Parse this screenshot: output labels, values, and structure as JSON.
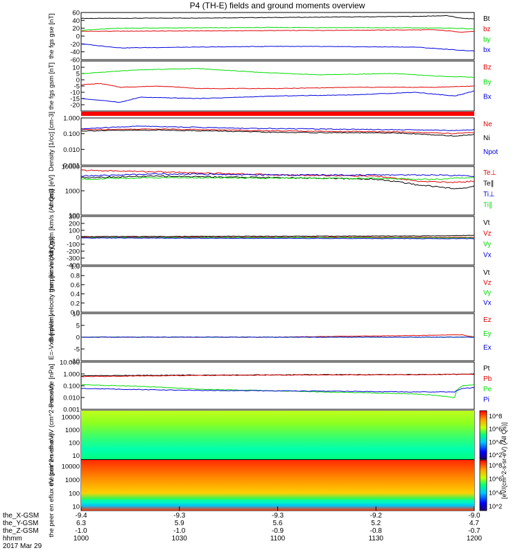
{
  "title": "P4 (TH-E) fields and ground moments overview",
  "footer": {
    "row_labels": [
      "the_X-GSM",
      "the_Y-GSM",
      "the_Z-GSM",
      "hhmm",
      "2017 Mar 29"
    ],
    "columns": [
      {
        "x": "-9.4",
        "y": "6.3",
        "z": "-1.0",
        "t": "1000"
      },
      {
        "x": "-9.3",
        "y": "5.9",
        "z": "-1.0",
        "t": "1030"
      },
      {
        "x": "-9.3",
        "y": "5.6",
        "z": "-0.9",
        "t": "1100"
      },
      {
        "x": "-9.2",
        "y": "5.2",
        "z": "-0.8",
        "t": "1130"
      },
      {
        "x": "-9.0",
        "y": "4.7",
        "z": "-0.7",
        "t": "1200"
      }
    ]
  },
  "colors": {
    "black": "#000000",
    "red": "#e00000",
    "green": "#00dd00",
    "blue": "#0000dd"
  },
  "chart_data": [
    {
      "type": "line",
      "ylabel": "the fgs gse [nT]",
      "ylim": [
        -60,
        60
      ],
      "yticks": [
        "60",
        "40",
        "20",
        "0",
        "-20",
        "-40",
        "-60"
      ],
      "series": [
        {
          "name": "Bt",
          "color": "#000000",
          "points": [
            [
              0,
              45
            ],
            [
              0.3,
              46
            ],
            [
              0.6,
              48
            ],
            [
              0.85,
              50
            ],
            [
              0.93,
              52
            ],
            [
              0.97,
              45
            ],
            [
              1,
              44
            ]
          ]
        },
        {
          "name": "bz",
          "color": "#e00000",
          "points": [
            [
              0,
              12
            ],
            [
              0.5,
              14
            ],
            [
              0.9,
              16
            ],
            [
              0.97,
              10
            ],
            [
              1,
              12
            ]
          ]
        },
        {
          "name": "by",
          "color": "#00dd00",
          "points": [
            [
              0,
              15
            ],
            [
              0.1,
              20
            ],
            [
              0.5,
              22
            ],
            [
              0.85,
              21
            ],
            [
              0.95,
              20
            ],
            [
              1,
              18
            ]
          ]
        },
        {
          "name": "bx",
          "color": "#0000dd",
          "points": [
            [
              0,
              -20
            ],
            [
              0.1,
              -30
            ],
            [
              0.5,
              -26
            ],
            [
              0.85,
              -28
            ],
            [
              0.95,
              -35
            ],
            [
              1,
              -38
            ]
          ]
        }
      ]
    },
    {
      "type": "line",
      "ylabel": "the fgs gsm [nT]",
      "ylim": [
        -25,
        15
      ],
      "yticks": [
        "10",
        "5",
        "0",
        "-5",
        "-10",
        "-15",
        "-20"
      ],
      "series": [
        {
          "name": "Bz",
          "color": "#e00000",
          "points": [
            [
              0,
              -4
            ],
            [
              0.05,
              -3
            ],
            [
              0.1,
              -6
            ],
            [
              0.2,
              -5
            ],
            [
              0.3,
              -7
            ],
            [
              0.5,
              -7
            ],
            [
              0.7,
              -6
            ],
            [
              0.9,
              -6
            ],
            [
              1,
              -5
            ]
          ]
        },
        {
          "name": "By",
          "color": "#00dd00",
          "points": [
            [
              0,
              5
            ],
            [
              0.15,
              8
            ],
            [
              0.3,
              9
            ],
            [
              0.45,
              6
            ],
            [
              0.6,
              4
            ],
            [
              0.8,
              5
            ],
            [
              0.9,
              3
            ],
            [
              1,
              2
            ]
          ]
        },
        {
          "name": "Bx",
          "color": "#0000dd",
          "points": [
            [
              0,
              -15
            ],
            [
              0.1,
              -18
            ],
            [
              0.15,
              -14
            ],
            [
              0.3,
              -15
            ],
            [
              0.5,
              -13
            ],
            [
              0.7,
              -12
            ],
            [
              0.85,
              -10
            ],
            [
              0.95,
              -13
            ],
            [
              1,
              -9
            ]
          ]
        }
      ]
    },
    {
      "type": "line",
      "ylabel": "Density [1/cc] [cm-3]",
      "scale": "log",
      "ylim": [
        0.001,
        1.0
      ],
      "yticks": [
        "1.000",
        "0.100",
        "0.010",
        "0.001"
      ],
      "series": [
        {
          "name": "Ne",
          "color": "#e00000",
          "points": [
            [
              0,
              0.18
            ],
            [
              0.2,
              0.2
            ],
            [
              0.5,
              0.15
            ],
            [
              0.8,
              0.13
            ],
            [
              0.95,
              0.1
            ],
            [
              1,
              0.12
            ]
          ]
        },
        {
          "name": "Ni",
          "color": "#000000",
          "points": [
            [
              0,
              0.15
            ],
            [
              0.2,
              0.17
            ],
            [
              0.5,
              0.12
            ],
            [
              0.8,
              0.11
            ],
            [
              0.95,
              0.07
            ],
            [
              1,
              0.09
            ]
          ]
        },
        {
          "name": "Npot",
          "color": "#0000dd",
          "points": [
            [
              0,
              0.2
            ],
            [
              0.15,
              0.3
            ],
            [
              0.4,
              0.22
            ],
            [
              0.8,
              0.18
            ],
            [
              0.95,
              0.16
            ],
            [
              1,
              0.18
            ]
          ]
        }
      ]
    },
    {
      "type": "line",
      "ylabel": "mom3 [eV]",
      "scale": "log",
      "ylim": [
        100,
        10000
      ],
      "yticks": [
        "10000",
        "1000",
        "100"
      ],
      "series": [
        {
          "name": "Te⊥",
          "color": "#e00000",
          "points": [
            [
              0,
              7000
            ],
            [
              0.2,
              6000
            ],
            [
              0.5,
              4500
            ],
            [
              0.75,
              4000
            ],
            [
              0.85,
              2500
            ],
            [
              0.95,
              2200
            ],
            [
              1,
              2500
            ]
          ]
        },
        {
          "name": "Te∥",
          "color": "#000000",
          "points": [
            [
              0,
              3500
            ],
            [
              0.2,
              4000
            ],
            [
              0.5,
              3500
            ],
            [
              0.75,
              3000
            ],
            [
              0.85,
              1800
            ],
            [
              0.95,
              1200
            ],
            [
              1,
              1500
            ]
          ]
        },
        {
          "name": "Ti⊥",
          "color": "#0000dd",
          "points": [
            [
              0,
              4000
            ],
            [
              0.2,
              5000
            ],
            [
              0.5,
              4500
            ],
            [
              0.75,
              4500
            ],
            [
              0.9,
              4500
            ],
            [
              1,
              4000
            ]
          ]
        },
        {
          "name": "Ti∥",
          "color": "#00dd00",
          "points": [
            [
              0,
              3000
            ],
            [
              0.2,
              3500
            ],
            [
              0.5,
              3300
            ],
            [
              0.75,
              3200
            ],
            [
              0.9,
              3000
            ],
            [
              1,
              3500
            ]
          ]
        }
      ]
    },
    {
      "type": "line",
      "ylabel": "the peir velocity gsm [km/s (All Qs)]",
      "ylim": [
        -400,
        300
      ],
      "yticks": [
        "300",
        "200",
        "100",
        "0",
        "-100",
        "-200",
        "-300",
        "-400"
      ],
      "series": [
        {
          "name": "Vt",
          "color": "#000000",
          "points": [
            [
              0,
              10
            ],
            [
              0.5,
              15
            ],
            [
              0.9,
              20
            ],
            [
              1,
              30
            ]
          ]
        },
        {
          "name": "Vz",
          "color": "#e00000",
          "points": [
            [
              0,
              0
            ],
            [
              0.5,
              0
            ],
            [
              1,
              0
            ]
          ]
        },
        {
          "name": "Vy",
          "color": "#00dd00",
          "points": [
            [
              0,
              -5
            ],
            [
              0.5,
              -5
            ],
            [
              1,
              -10
            ]
          ]
        },
        {
          "name": "Vx",
          "color": "#0000dd",
          "points": [
            [
              0,
              -10
            ],
            [
              0.5,
              -15
            ],
            [
              1,
              -20
            ]
          ]
        }
      ]
    },
    {
      "type": "line",
      "ylabel": "the peer velocity gsm [km/s (All Qs)]",
      "ylim": [
        0.0,
        1.0
      ],
      "yticks": [
        "1.0",
        "0.8",
        "0.6",
        "0.4",
        "0.2",
        "0.0"
      ],
      "series": [
        {
          "name": "Vt",
          "color": "#000000",
          "points": []
        },
        {
          "name": "Vz",
          "color": "#e00000",
          "points": []
        },
        {
          "name": "Vy",
          "color": "#00dd00",
          "points": []
        },
        {
          "name": "Vx",
          "color": "#0000dd",
          "points": []
        }
      ]
    },
    {
      "type": "line",
      "ylabel": "E=-VxB [mV/m]",
      "ylim": [
        -10,
        10
      ],
      "yticks": [
        "10",
        "5",
        "0",
        "-5",
        "-10"
      ],
      "series": [
        {
          "name": "Ez",
          "color": "#e00000",
          "points": [
            [
              0,
              0
            ],
            [
              0.5,
              0
            ],
            [
              0.97,
              1
            ],
            [
              1,
              0
            ]
          ]
        },
        {
          "name": "Ey",
          "color": "#00dd00",
          "points": [
            [
              0,
              0
            ],
            [
              0.5,
              0
            ],
            [
              1,
              0
            ]
          ]
        },
        {
          "name": "Ex",
          "color": "#0000dd",
          "points": [
            [
              0,
              0
            ],
            [
              0.5,
              0
            ],
            [
              1,
              0
            ]
          ]
        }
      ]
    },
    {
      "type": "line",
      "ylabel": "Pressure [nPa]",
      "scale": "log",
      "ylim": [
        0.001,
        10.0
      ],
      "yticks": [
        "10.000",
        "1.000",
        "0.100",
        "0.010",
        "0.001"
      ],
      "series": [
        {
          "name": "Pt",
          "color": "#000000",
          "points": [
            [
              0,
              0.7
            ],
            [
              0.3,
              0.8
            ],
            [
              0.6,
              0.85
            ],
            [
              0.9,
              0.9
            ],
            [
              1,
              1.0
            ]
          ]
        },
        {
          "name": "Pb",
          "color": "#e00000",
          "points": [
            [
              0,
              0.6
            ],
            [
              0.3,
              0.75
            ],
            [
              0.6,
              0.82
            ],
            [
              0.9,
              0.88
            ],
            [
              1,
              0.95
            ]
          ]
        },
        {
          "name": "Pe",
          "color": "#00dd00",
          "points": [
            [
              0,
              0.12
            ],
            [
              0.1,
              0.1
            ],
            [
              0.3,
              0.05
            ],
            [
              0.6,
              0.03
            ],
            [
              0.85,
              0.02
            ],
            [
              0.95,
              0.01
            ],
            [
              0.97,
              0.1
            ],
            [
              1,
              0.12
            ]
          ]
        },
        {
          "name": "Pi",
          "color": "#0000dd",
          "points": [
            [
              0,
              0.06
            ],
            [
              0.1,
              0.05
            ],
            [
              0.3,
              0.04
            ],
            [
              0.6,
              0.035
            ],
            [
              0.85,
              0.03
            ],
            [
              0.95,
              0.03
            ],
            [
              0.97,
              0.06
            ],
            [
              1,
              0.07
            ]
          ]
        }
      ]
    },
    {
      "type": "heatmap",
      "ylabel": "the peir en eflux eV (cm^2-s-sr-eV)",
      "scale": "log",
      "ylim": [
        5,
        30000
      ],
      "yticks": [
        "10000",
        "1000",
        "100",
        "10"
      ],
      "colorbar": {
        "label": "[eV/(cm^2-s-sr-eV)]",
        "ticks": [
          "10^8",
          "10^6",
          "10^4",
          "10^2"
        ]
      }
    },
    {
      "type": "heatmap",
      "ylabel": "the peer en eflux eV (cm^2-s-sr-eV)",
      "scale": "log",
      "ylim": [
        5,
        30000
      ],
      "yticks": [
        "10000",
        "1000",
        "100",
        "10"
      ],
      "colorbar": {
        "label": "[eV/(cm^2-s-sr-eV) (All Qs)]",
        "ticks": [
          "10^8",
          "10^6",
          "10^4",
          "10^2"
        ]
      }
    }
  ]
}
